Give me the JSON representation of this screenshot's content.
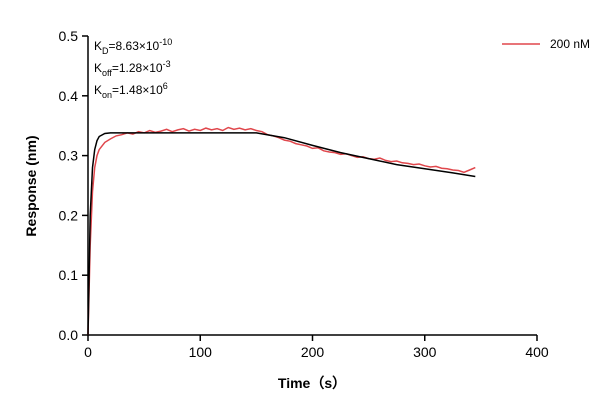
{
  "chart_data": {
    "type": "line",
    "xlabel": "Time（s）",
    "ylabel": "Response (nm)",
    "annotations": [
      {
        "base": "K",
        "sub": "D",
        "text": "=8.63×10",
        "sup": "-10"
      },
      {
        "base": "K",
        "sub": "off",
        "text": "=1.28×10",
        "sup": "-3"
      },
      {
        "base": "K",
        "sub": "on",
        "text": "=1.48×10",
        "sup": "6"
      }
    ],
    "xlim": [
      0,
      400
    ],
    "xticks": [
      0,
      100,
      200,
      300,
      400
    ],
    "ylim": [
      0,
      0.5
    ],
    "yticks": [
      {
        "value": 0,
        "label": "0.0"
      },
      0.1,
      0.2,
      0.3,
      0.4,
      0.5
    ],
    "series": [
      {
        "name": "200 nM",
        "color": "#e0474c",
        "x": [
          0,
          2,
          4,
          6,
          8,
          10,
          15,
          20,
          25,
          30,
          35,
          40,
          45,
          50,
          55,
          60,
          65,
          70,
          75,
          80,
          85,
          90,
          95,
          100,
          105,
          110,
          115,
          120,
          125,
          130,
          135,
          140,
          145,
          150,
          155,
          160,
          165,
          170,
          175,
          180,
          185,
          190,
          195,
          200,
          205,
          210,
          215,
          220,
          225,
          230,
          235,
          240,
          245,
          250,
          255,
          260,
          265,
          270,
          275,
          280,
          285,
          290,
          295,
          300,
          305,
          310,
          315,
          320,
          325,
          330,
          335,
          340,
          345
        ],
        "values": [
          0,
          0.15,
          0.24,
          0.28,
          0.3,
          0.31,
          0.322,
          0.328,
          0.333,
          0.335,
          0.338,
          0.336,
          0.34,
          0.338,
          0.342,
          0.339,
          0.341,
          0.344,
          0.34,
          0.343,
          0.345,
          0.341,
          0.344,
          0.342,
          0.346,
          0.343,
          0.345,
          0.342,
          0.347,
          0.344,
          0.346,
          0.343,
          0.345,
          0.342,
          0.34,
          0.335,
          0.333,
          0.33,
          0.326,
          0.324,
          0.32,
          0.318,
          0.316,
          0.312,
          0.313,
          0.308,
          0.306,
          0.305,
          0.302,
          0.303,
          0.3,
          0.297,
          0.298,
          0.295,
          0.294,
          0.296,
          0.292,
          0.29,
          0.291,
          0.288,
          0.287,
          0.285,
          0.286,
          0.283,
          0.281,
          0.282,
          0.279,
          0.278,
          0.276,
          0.275,
          0.272,
          0.276,
          0.28
        ]
      },
      {
        "color": "#000000",
        "x": [
          0,
          2,
          4,
          6,
          8,
          10,
          15,
          20,
          50,
          100,
          150,
          175,
          200,
          225,
          250,
          275,
          300,
          325,
          345
        ],
        "values": [
          0,
          0.2,
          0.28,
          0.31,
          0.325,
          0.332,
          0.337,
          0.338,
          0.338,
          0.338,
          0.338,
          0.33,
          0.317,
          0.305,
          0.295,
          0.285,
          0.278,
          0.271,
          0.265
        ]
      }
    ]
  }
}
